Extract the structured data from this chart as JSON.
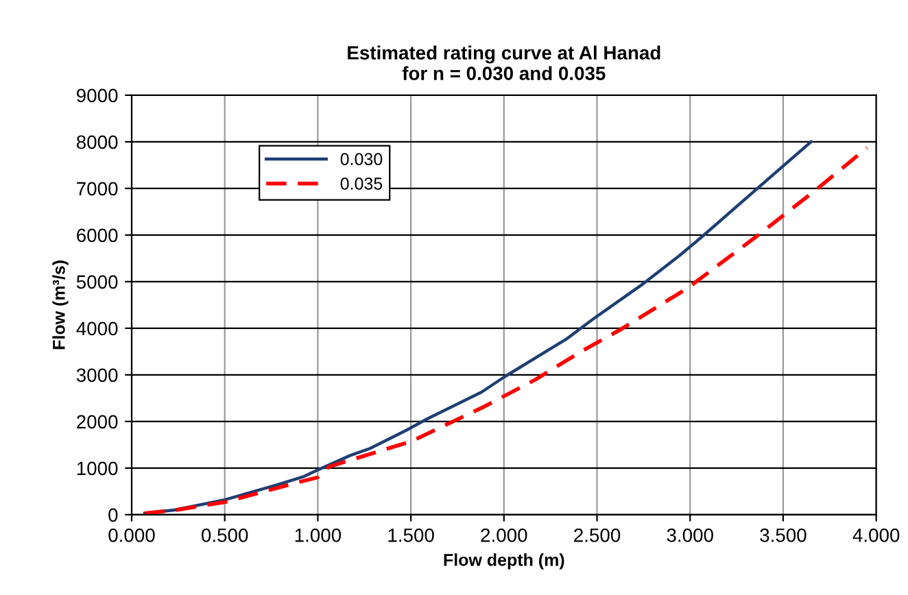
{
  "chart_data": {
    "type": "line",
    "title": "Estimated rating curve at Al Hanad\nfor n = 0.030 and 0.035",
    "xlabel": "Flow depth (m)",
    "ylabel": "Flow (m³/s)",
    "xlim": [
      0,
      4
    ],
    "xticks": [
      {
        "value": 0,
        "label": "0.000"
      },
      {
        "value": 0.5,
        "label": "0.500"
      },
      {
        "value": 1,
        "label": "1.000"
      },
      {
        "value": 1.5,
        "label": "1.500"
      },
      {
        "value": 2,
        "label": "2.000"
      },
      {
        "value": 2.5,
        "label": "2.500"
      },
      {
        "value": 3,
        "label": "3.000"
      },
      {
        "value": 3.5,
        "label": "3.500"
      },
      {
        "value": 4,
        "label": "4.000"
      }
    ],
    "ylim": [
      0,
      9000
    ],
    "yticks": [
      0,
      1000,
      2000,
      3000,
      4000,
      5000,
      6000,
      7000,
      8000,
      9000
    ],
    "grid": true,
    "legend": "top left",
    "marker": "none",
    "series": [
      {
        "name": "0.030",
        "color": "#1f3f73",
        "line_style": "solid",
        "x": [
          0.07,
          0.23,
          0.5,
          0.78,
          0.92,
          1.0,
          1.18,
          1.28,
          1.47,
          1.59,
          1.88,
          2.0,
          2.34,
          2.48,
          2.75,
          2.94,
          3.06,
          3.37,
          3.65
        ],
        "values": [
          30,
          100,
          320,
          640,
          810,
          960,
          1280,
          1420,
          1800,
          2060,
          2630,
          2950,
          3780,
          4200,
          4960,
          5550,
          5950,
          7030,
          8000
        ]
      },
      {
        "name": "0.035",
        "color": "#ff0000",
        "line_style": "dashed",
        "x": [
          0.07,
          0.24,
          0.5,
          0.9,
          1.0,
          1.06,
          1.5,
          1.89,
          2.17,
          2.41,
          2.63,
          2.99,
          3.35,
          3.68,
          3.95
        ],
        "values": [
          30,
          100,
          270,
          700,
          800,
          1030,
          1570,
          2310,
          2900,
          3490,
          3980,
          4870,
          5950,
          6980,
          7870
        ]
      }
    ]
  }
}
